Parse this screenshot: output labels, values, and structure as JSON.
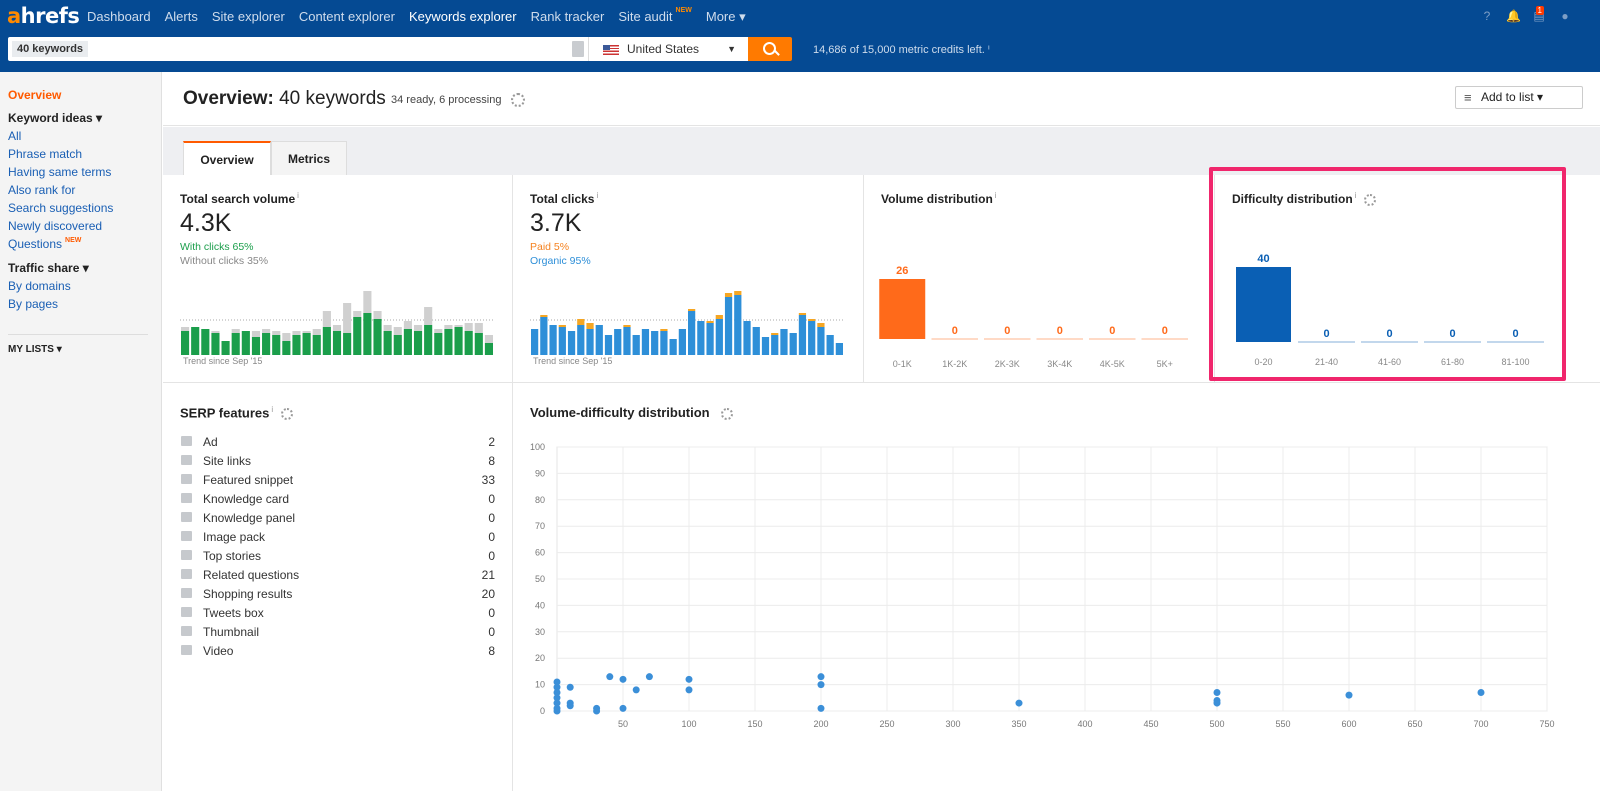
{
  "nav": {
    "logo_a": "a",
    "logo_rest": "hrefs",
    "items": [
      "Dashboard",
      "Alerts",
      "Site explorer",
      "Content explorer",
      "Keywords explorer",
      "Rank tracker",
      "Site audit",
      "More ▾"
    ],
    "active_index": 4,
    "site_audit_badge": "NEW",
    "notification_count": "1"
  },
  "search": {
    "tag": "40 keywords",
    "country": "United States",
    "credits": "14,686 of 15,000 metric credits left. ⁱ"
  },
  "sidebar": {
    "overview": "Overview",
    "keyword_ideas": "Keyword ideas ▾",
    "ideas": [
      "All",
      "Phrase match",
      "Having same terms",
      "Also rank for",
      "Search suggestions",
      "Newly discovered",
      "Questions"
    ],
    "questions_badge": "NEW",
    "traffic_share": "Traffic share ▾",
    "traffic": [
      "By domains",
      "By pages"
    ],
    "my_lists": "MY LISTS ▾"
  },
  "header": {
    "title_bold": "Overview:",
    "title_rest": " 40 keywords",
    "status": "34 ready, 6 processing",
    "add_to_list": "Add to list  ▾"
  },
  "tabs": [
    "Overview",
    "Metrics"
  ],
  "cards": {
    "search_volume": {
      "title": "Total search volume",
      "value": "4.3K",
      "with_clicks": "With clicks 65%",
      "without_clicks": "Without clicks 35%",
      "trend": "Trend since Sep '15",
      "color_main": "#1b9e4b",
      "color_rest": "#d0d0d0"
    },
    "total_clicks": {
      "title": "Total clicks",
      "value": "3.7K",
      "paid": "Paid 5%",
      "organic": "Organic 95%",
      "trend": "Trend since Sep '15",
      "color_main": "#2e8fd8",
      "color_rest": "#f5a623"
    },
    "volume_distribution": {
      "title": "Volume distribution"
    },
    "difficulty_distribution": {
      "title": "Difficulty distribution"
    }
  },
  "serp": {
    "title": "SERP features",
    "rows": [
      {
        "label": "Ad",
        "value": "2"
      },
      {
        "label": "Site links",
        "value": "8"
      },
      {
        "label": "Featured snippet",
        "value": "33"
      },
      {
        "label": "Knowledge card",
        "value": "0"
      },
      {
        "label": "Knowledge panel",
        "value": "0"
      },
      {
        "label": "Image pack",
        "value": "0"
      },
      {
        "label": "Top stories",
        "value": "0"
      },
      {
        "label": "Related questions",
        "value": "21"
      },
      {
        "label": "Shopping results",
        "value": "20"
      },
      {
        "label": "Tweets box",
        "value": "0"
      },
      {
        "label": "Thumbnail",
        "value": "0"
      },
      {
        "label": "Video",
        "value": "8"
      }
    ]
  },
  "scatter_title": "Volume-difficulty distribution",
  "chart_data": [
    {
      "type": "bar",
      "title": "Volume distribution",
      "categories": [
        "0-1K",
        "1K-2K",
        "2K-3K",
        "3K-4K",
        "4K-5K",
        "5K+"
      ],
      "values": [
        26,
        0,
        0,
        0,
        0,
        0
      ],
      "color": "#ff6a1a"
    },
    {
      "type": "bar",
      "title": "Difficulty distribution",
      "categories": [
        "0-20",
        "21-40",
        "41-60",
        "61-80",
        "81-100"
      ],
      "values": [
        40,
        0,
        0,
        0,
        0
      ],
      "color": "#0a5fb4"
    },
    {
      "type": "scatter",
      "title": "Volume-difficulty distribution",
      "xlim": [
        0,
        750
      ],
      "ylim": [
        0,
        100
      ],
      "xticks": [
        50,
        100,
        150,
        200,
        250,
        300,
        350,
        400,
        450,
        500,
        550,
        600,
        650,
        700,
        750
      ],
      "yticks": [
        0,
        10,
        20,
        30,
        40,
        50,
        60,
        70,
        80,
        90,
        100
      ],
      "points": [
        [
          0,
          11
        ],
        [
          0,
          9
        ],
        [
          0,
          7
        ],
        [
          0,
          5
        ],
        [
          0,
          3
        ],
        [
          0,
          1
        ],
        [
          0,
          0
        ],
        [
          10,
          9
        ],
        [
          10,
          3
        ],
        [
          10,
          2
        ],
        [
          30,
          1
        ],
        [
          30,
          0
        ],
        [
          40,
          13
        ],
        [
          50,
          12
        ],
        [
          50,
          1
        ],
        [
          60,
          8
        ],
        [
          70,
          13
        ],
        [
          100,
          12
        ],
        [
          100,
          8
        ],
        [
          200,
          13
        ],
        [
          200,
          10
        ],
        [
          200,
          1
        ],
        [
          350,
          3
        ],
        [
          500,
          7
        ],
        [
          500,
          4
        ],
        [
          500,
          3
        ],
        [
          600,
          6
        ],
        [
          700,
          7
        ]
      ],
      "color": "#3b8fd8"
    }
  ]
}
